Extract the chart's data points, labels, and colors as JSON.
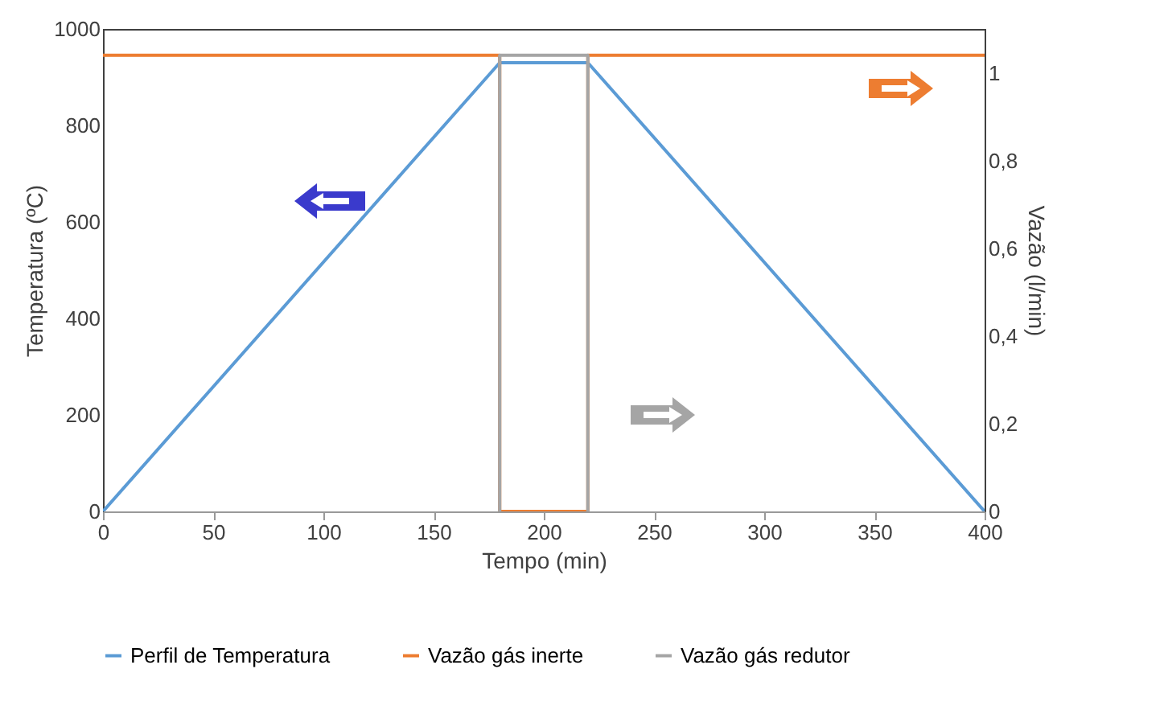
{
  "chart_data": {
    "type": "line",
    "xlabel": "Tempo  (min)",
    "ylabel": "Temperatura (ºC)",
    "y2label": "Vazão (l/min)",
    "xlim": [
      0,
      400
    ],
    "xticks": [
      0,
      50,
      100,
      150,
      200,
      250,
      300,
      350,
      400
    ],
    "ylim": [
      0,
      1000
    ],
    "yticks": [
      0,
      200,
      400,
      600,
      800,
      1000
    ],
    "y2lim": [
      0,
      1.1
    ],
    "y2ticks": [
      0,
      {
        "value": 0.2,
        "label": "0,2"
      },
      {
        "value": 0.4,
        "label": "0,4"
      },
      {
        "value": 0.6,
        "label": "0,6"
      },
      {
        "value": 0.8,
        "label": "0,8"
      },
      1
    ],
    "legend": "bottom",
    "line_style": "solid",
    "series": [
      {
        "name": "Perfil de Temperatura",
        "color": "#5b9bd5",
        "x": [
          0,
          180,
          220,
          400
        ],
        "values": [
          0,
          930,
          930,
          0
        ]
      },
      {
        "name": "Vazão gás inerte",
        "color": "#ed7d31",
        "axis": "y2",
        "x": [
          0,
          180,
          180,
          220,
          220,
          400
        ],
        "values": [
          1.04,
          1.04,
          0,
          0,
          1.04,
          1.04
        ]
      },
      {
        "name": "Vazão gás redutor",
        "color": "#a5a5a5",
        "axis": "y2",
        "x": [
          180,
          180,
          220,
          220
        ],
        "values": [
          0,
          1.04,
          1.04,
          0
        ]
      }
    ]
  }
}
